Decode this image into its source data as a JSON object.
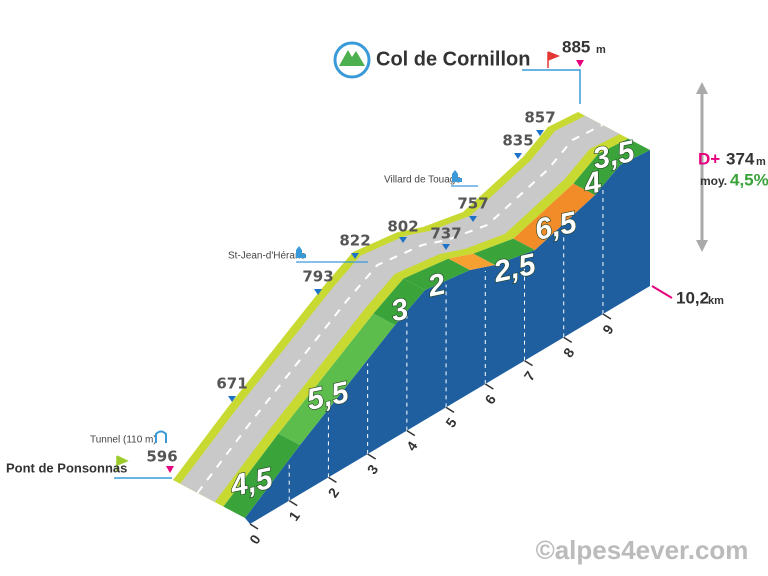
{
  "header": {
    "title": "Col de Cornillon",
    "summit_altitude": "885",
    "unit": "m"
  },
  "start": {
    "name": "Pont de Ponsonnas",
    "altitude": "596"
  },
  "tunnel": "Tunnel (110 m)",
  "places": [
    "St-Jean-d'Hérans",
    "Villard de Touage"
  ],
  "altitudes": [
    "671",
    "793",
    "822",
    "802",
    "737",
    "757",
    "835",
    "857"
  ],
  "gradients": [
    "4,5",
    "5,5",
    "3",
    "2",
    "2,5",
    "6,5",
    "4",
    "3,5"
  ],
  "km_marks": [
    "0",
    "1",
    "2",
    "3",
    "4",
    "5",
    "6",
    "7",
    "8",
    "9"
  ],
  "distance": {
    "value": "10,2",
    "unit": "km"
  },
  "stats": {
    "elevation_gain_label": "D+",
    "elevation_gain": "374",
    "gain_unit": "m",
    "average_label": "moy.",
    "average": "4,5%"
  },
  "copyright": "©alpes4ever.com"
}
